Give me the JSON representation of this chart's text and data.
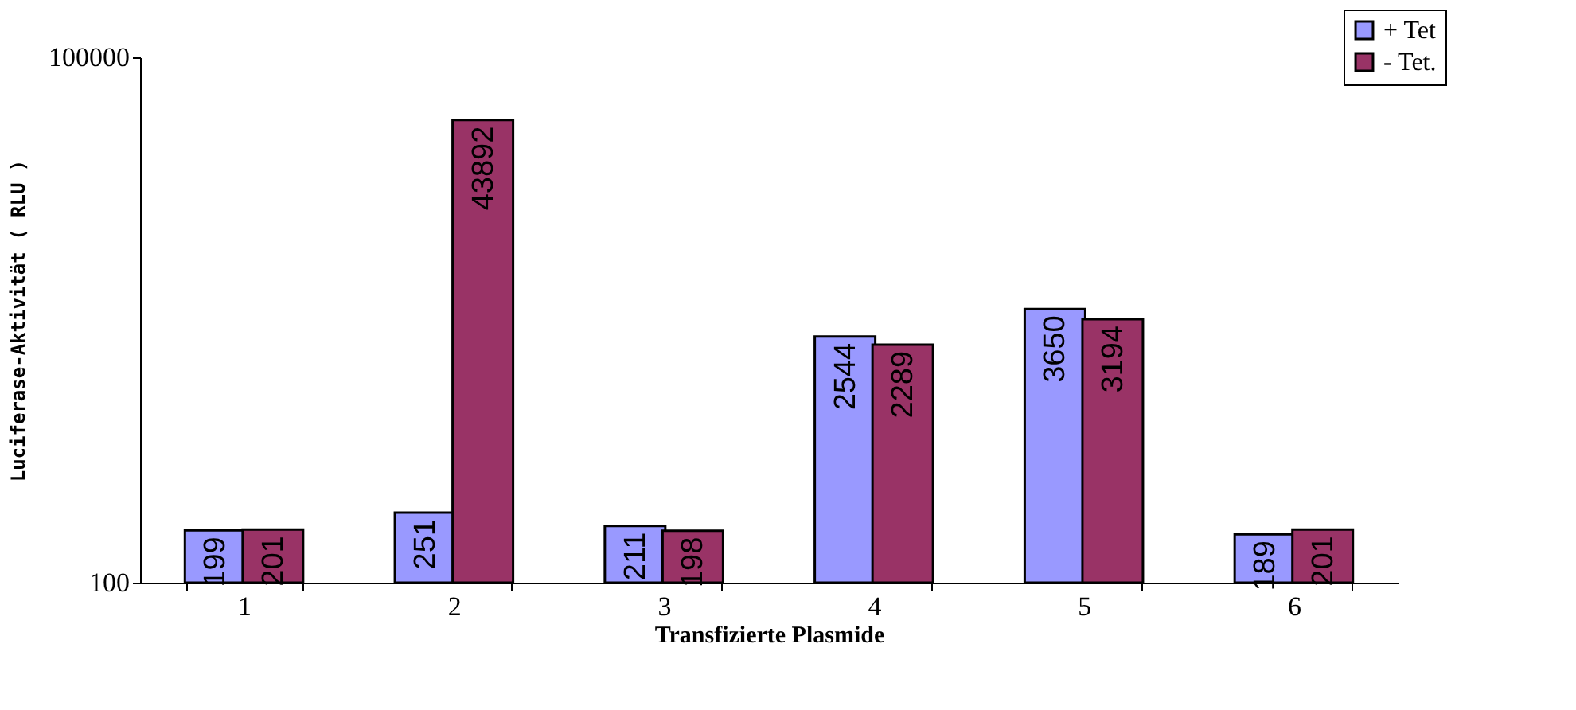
{
  "chart_data": {
    "type": "bar",
    "xlabel": "Transfizierte Plasmide",
    "ylabel": "Luciferase-Aktivität ( RLU )",
    "categories": [
      "1",
      "2",
      "3",
      "4",
      "5",
      "6"
    ],
    "series": [
      {
        "name": "+ Tet",
        "color": "#9999ff",
        "values": [
          199,
          251,
          211,
          2544,
          3650,
          189
        ]
      },
      {
        "name": "- Tet.",
        "color": "#993366",
        "values": [
          201,
          43892,
          198,
          2289,
          3194,
          201
        ]
      }
    ],
    "log": true,
    "ylim": [
      100,
      100000
    ],
    "yticks": [
      100,
      100000
    ],
    "grid": false,
    "legend": "top right",
    "data_labels": true
  }
}
